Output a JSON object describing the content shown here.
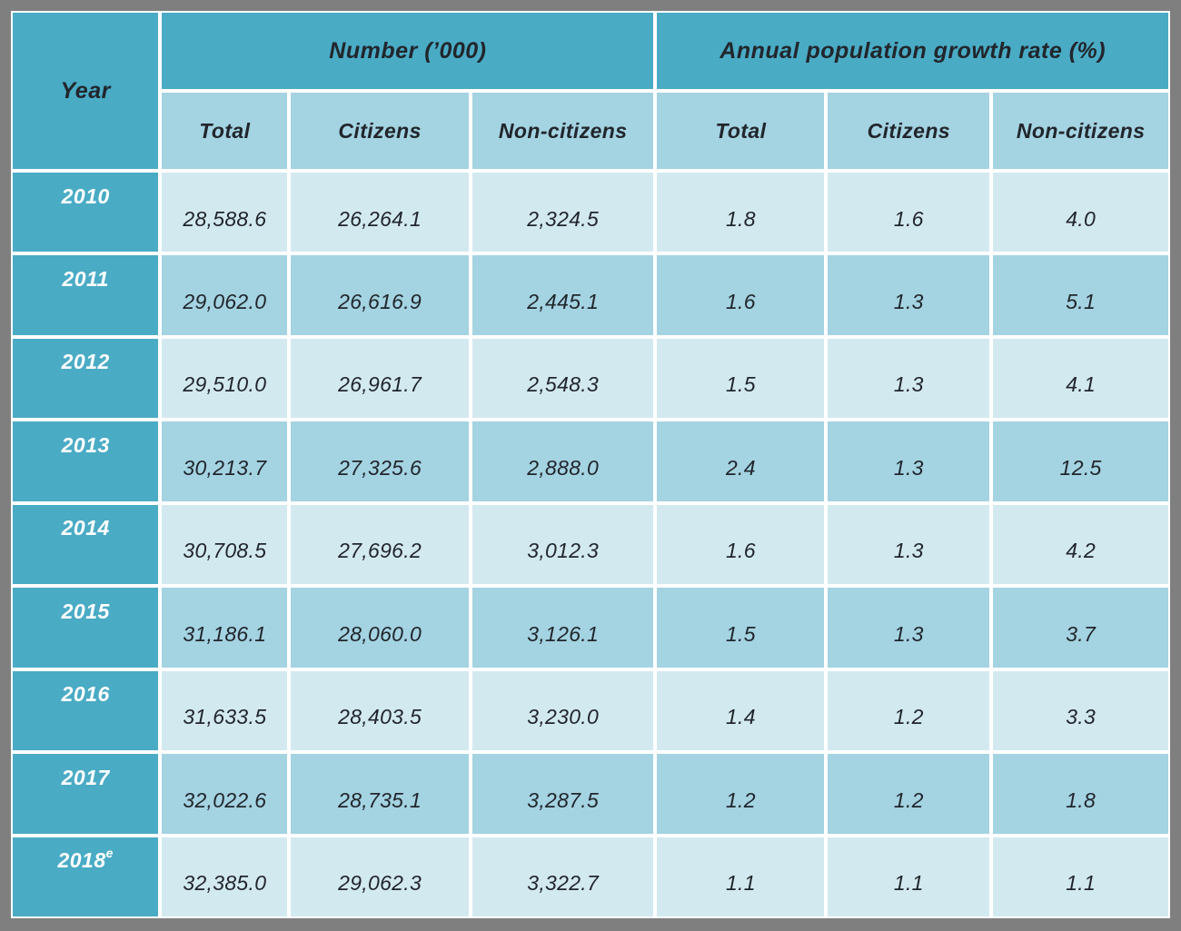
{
  "table": {
    "corner_header": "Year",
    "groups": [
      {
        "label": "Number (’000)",
        "columns": [
          "Total",
          "Citizens",
          "Non-citizens"
        ]
      },
      {
        "label": "Annual population growth rate (%)",
        "columns": [
          "Total",
          "Citizens",
          "Non-citizens"
        ]
      }
    ],
    "rows": [
      {
        "year": "2010",
        "year_sup": "",
        "values": [
          "28,588.6",
          "26,264.1",
          "2,324.5",
          "1.8",
          "1.6",
          "4.0"
        ]
      },
      {
        "year": "2011",
        "year_sup": "",
        "values": [
          "29,062.0",
          "26,616.9",
          "2,445.1",
          "1.6",
          "1.3",
          "5.1"
        ]
      },
      {
        "year": "2012",
        "year_sup": "",
        "values": [
          "29,510.0",
          "26,961.7",
          "2,548.3",
          "1.5",
          "1.3",
          "4.1"
        ]
      },
      {
        "year": "2013",
        "year_sup": "",
        "values": [
          "30,213.7",
          "27,325.6",
          "2,888.0",
          "2.4",
          "1.3",
          "12.5"
        ]
      },
      {
        "year": "2014",
        "year_sup": "",
        "values": [
          "30,708.5",
          "27,696.2",
          "3,012.3",
          "1.6",
          "1.3",
          "4.2"
        ]
      },
      {
        "year": "2015",
        "year_sup": "",
        "values": [
          "31,186.1",
          "28,060.0",
          "3,126.1",
          "1.5",
          "1.3",
          "3.7"
        ]
      },
      {
        "year": "2016",
        "year_sup": "",
        "values": [
          "31,633.5",
          "28,403.5",
          "3,230.0",
          "1.4",
          "1.2",
          "3.3"
        ]
      },
      {
        "year": "2017",
        "year_sup": "",
        "values": [
          "32,022.6",
          "28,735.1",
          "3,287.5",
          "1.2",
          "1.2",
          "1.8"
        ]
      },
      {
        "year": "2018",
        "year_sup": "e",
        "values": [
          "32,385.0",
          "29,062.3",
          "3,322.7",
          "1.1",
          "1.1",
          "1.1"
        ]
      }
    ]
  },
  "colors": {
    "frame_gray": "#7F7F7F",
    "header_teal": "#4AABC5",
    "subheader_blue": "#A4D3E2",
    "row_light": "#D3E9F0",
    "row_medium": "#A4D3E2",
    "cell_border_white": "#FFFFFF",
    "text_dark": "#21262C",
    "text_white": "#FFFFFF"
  },
  "chart_data": {
    "type": "table",
    "column_groups": [
      {
        "label": "Number (’000)",
        "span": 3
      },
      {
        "label": "Annual population growth rate (%)",
        "span": 3
      }
    ],
    "columns": [
      "Year",
      "Number (’000) Total",
      "Number (’000) Citizens",
      "Number (’000) Non-citizens",
      "Annual population growth rate (%) Total",
      "Annual population growth rate (%) Citizens",
      "Annual population growth rate (%) Non-citizens"
    ],
    "rows": [
      [
        "2010",
        28588.6,
        26264.1,
        2324.5,
        1.8,
        1.6,
        4.0
      ],
      [
        "2011",
        29062.0,
        26616.9,
        2445.1,
        1.6,
        1.3,
        5.1
      ],
      [
        "2012",
        29510.0,
        26961.7,
        2548.3,
        1.5,
        1.3,
        4.1
      ],
      [
        "2013",
        30213.7,
        27325.6,
        2888.0,
        2.4,
        1.3,
        12.5
      ],
      [
        "2014",
        30708.5,
        27696.2,
        3012.3,
        1.6,
        1.3,
        4.2
      ],
      [
        "2015",
        31186.1,
        28060.0,
        3126.1,
        1.5,
        1.3,
        3.7
      ],
      [
        "2016",
        31633.5,
        28403.5,
        3230.0,
        1.4,
        1.2,
        3.3
      ],
      [
        "2017",
        32022.6,
        28735.1,
        3287.5,
        1.2,
        1.2,
        1.8
      ],
      [
        "2018e",
        32385.0,
        29062.3,
        3322.7,
        1.1,
        1.1,
        1.1
      ]
    ]
  }
}
